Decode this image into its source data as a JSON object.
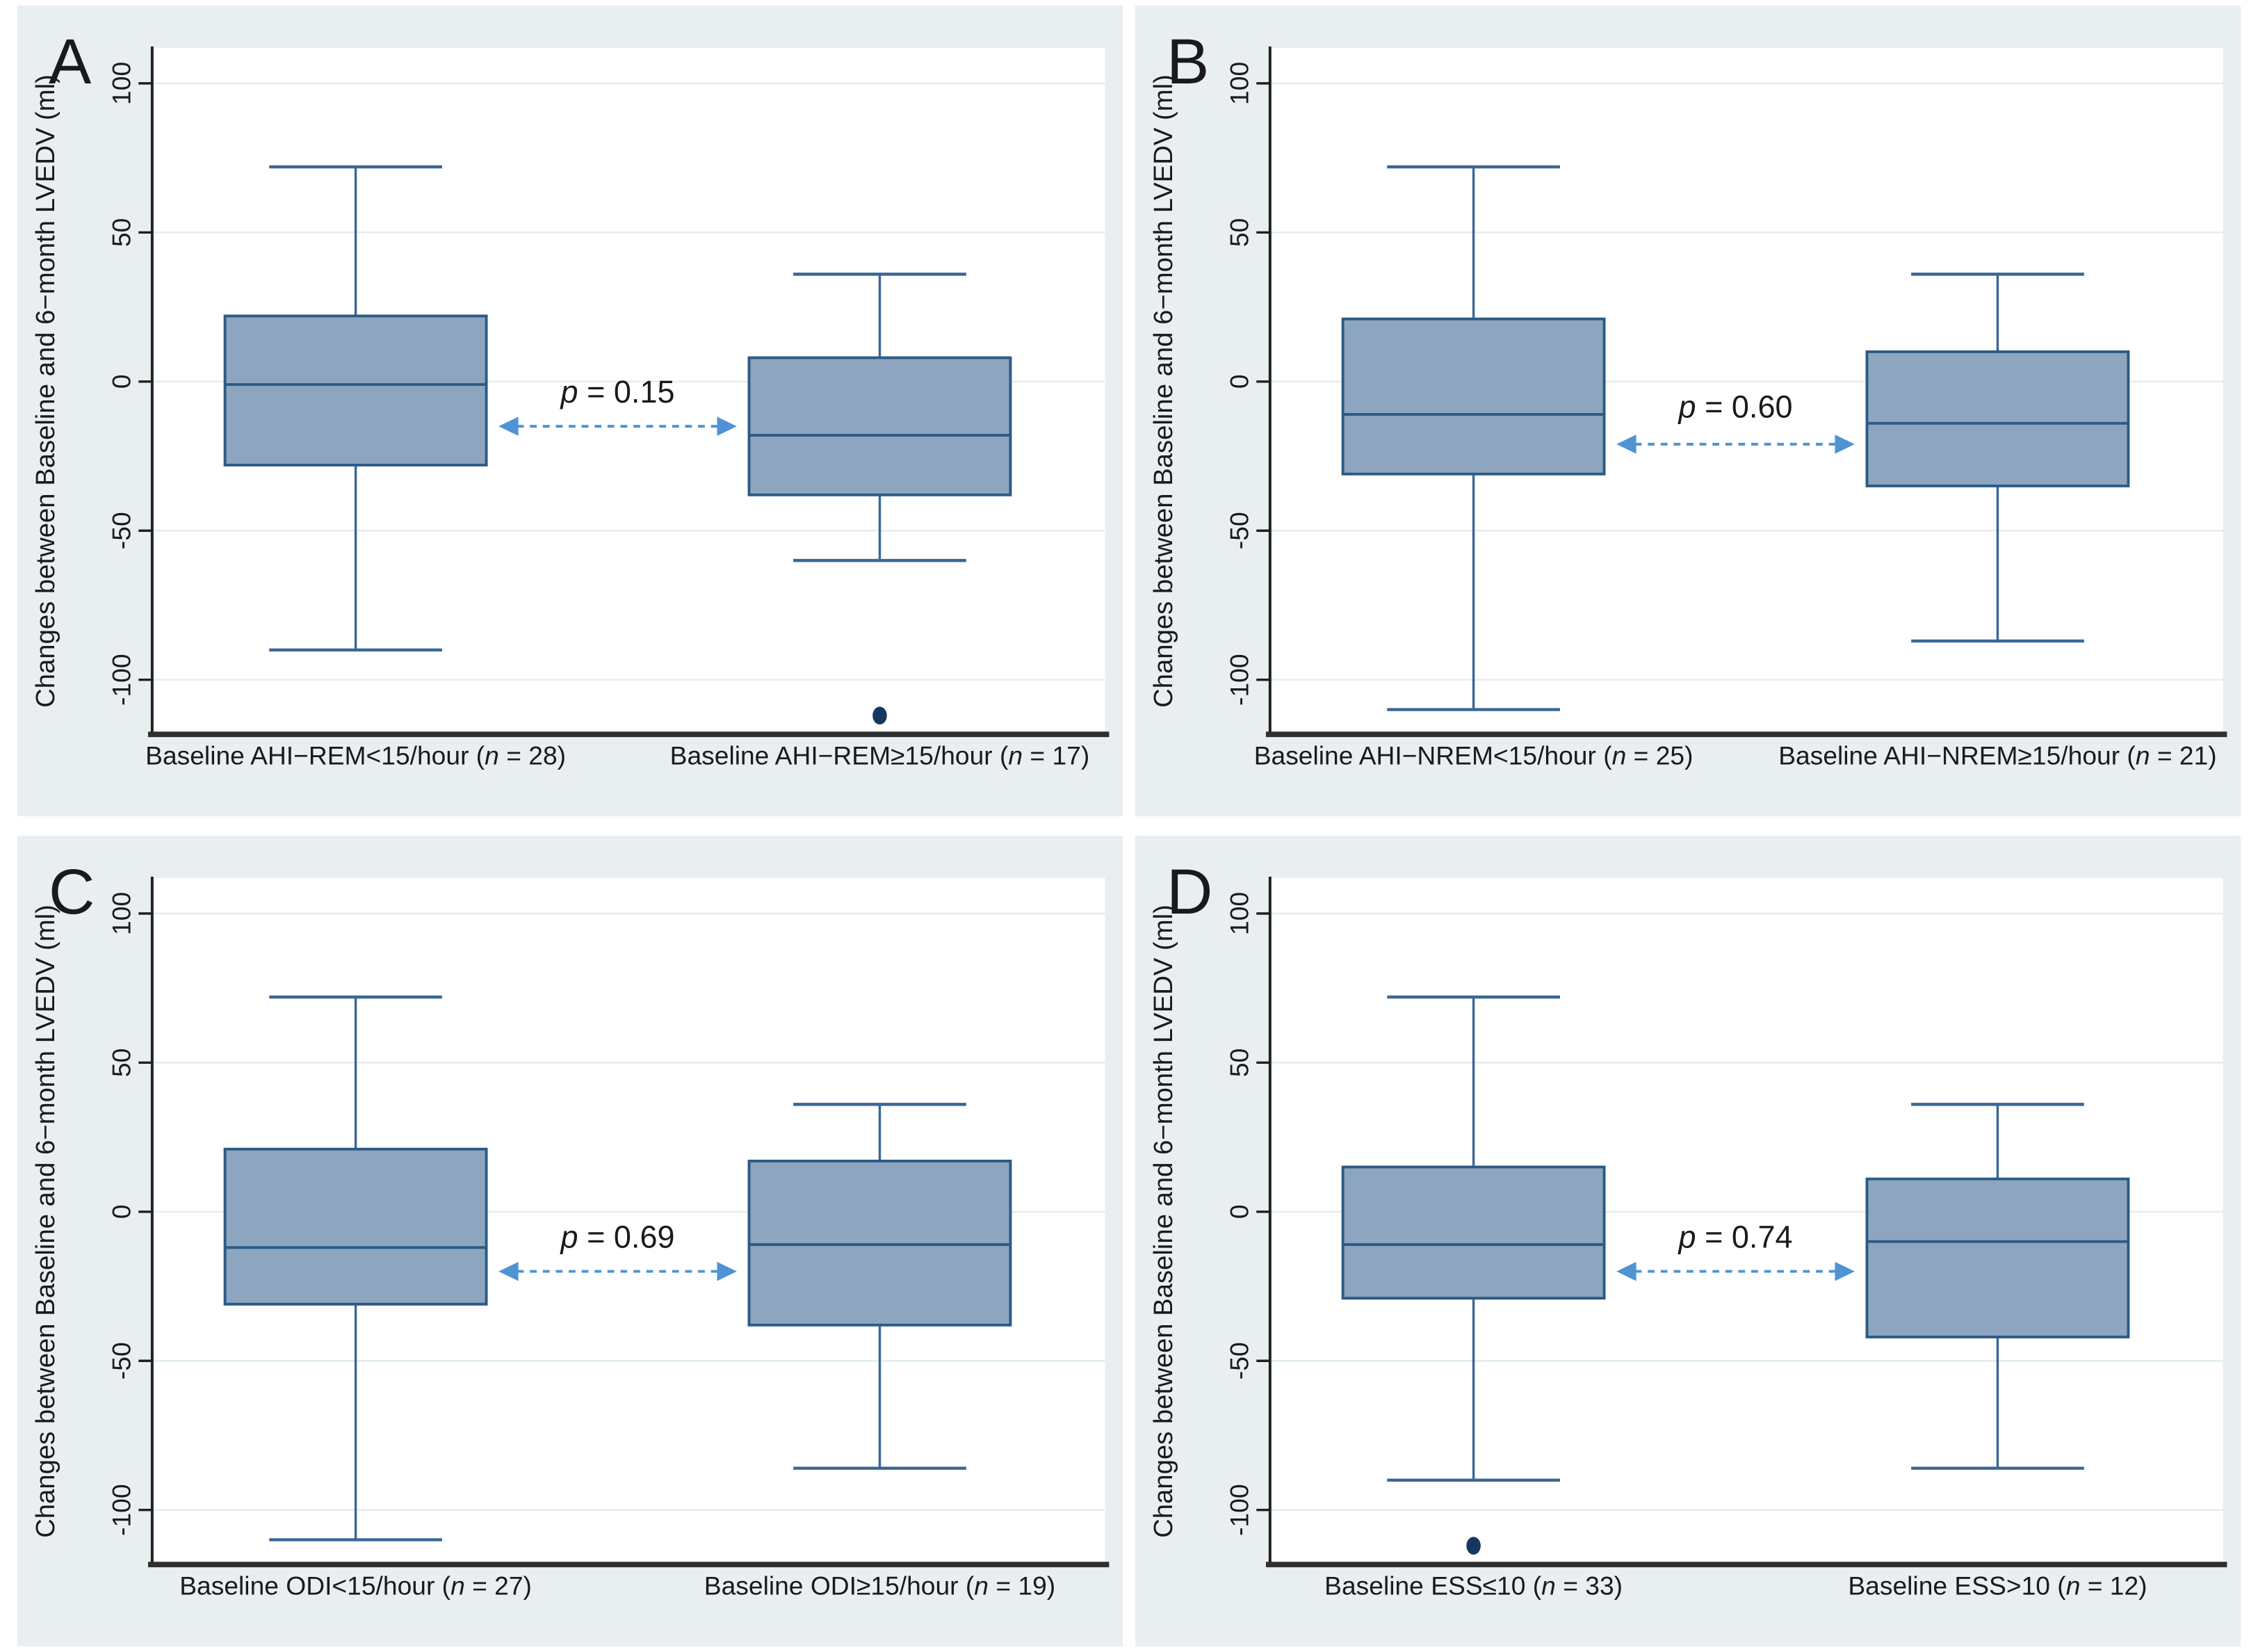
{
  "colors": {
    "panel_bg": "#e9eef1",
    "plot_bg": "#ffffff",
    "grid_line": "#e2ecf3",
    "box_fill": "#8da5bf",
    "box_stroke": "#2d5a85",
    "whisker_stroke": "#3a6795",
    "axis_line": "#1f1f1f",
    "bottom_axis_line": "#2f2f2f",
    "arrow": "#4f93d4",
    "outlier": "#17375e",
    "text": "#1a1a1a"
  },
  "chart_data": {
    "type": "boxplot",
    "layout": "2x2-grid",
    "y_axis": {
      "title": "Changes between Baseline and 6−month LVEDV (ml)",
      "ticks": [
        100,
        50,
        0,
        -50,
        -100
      ],
      "range": [
        -125,
        112
      ],
      "grid": true
    },
    "panels": [
      {
        "letter": "A",
        "p_value": "0.15",
        "p_prefix": "p",
        "comparison_arrow": {
          "value_y": -15,
          "label_value_y": -7
        },
        "groups": [
          {
            "label": "Baseline AHI−REM<15/hour",
            "n": "28",
            "stats": {
              "whisker_low": -90,
              "q1": -28,
              "median": -1,
              "q3": 22,
              "whisker_high": 72
            },
            "outliers": []
          },
          {
            "label": "Baseline AHI−REM≥15/hour",
            "n": "17",
            "stats": {
              "whisker_low": -60,
              "q1": -38,
              "median": -18,
              "q3": 8,
              "whisker_high": 36
            },
            "outliers": [
              -112
            ]
          }
        ]
      },
      {
        "letter": "B",
        "p_value": "0.60",
        "p_prefix": "p",
        "comparison_arrow": {
          "value_y": -21,
          "label_value_y": -12
        },
        "groups": [
          {
            "label": "Baseline AHI−NREM<15/hour",
            "n": "25",
            "stats": {
              "whisker_low": -110,
              "q1": -31,
              "median": -11,
              "q3": 21,
              "whisker_high": 72
            },
            "outliers": []
          },
          {
            "label": "Baseline AHI−NREM≥15/hour",
            "n": "21",
            "stats": {
              "whisker_low": -87,
              "q1": -35,
              "median": -14,
              "q3": 10,
              "whisker_high": 36
            },
            "outliers": []
          }
        ]
      },
      {
        "letter": "C",
        "p_value": "0.69",
        "p_prefix": "p",
        "comparison_arrow": {
          "value_y": -20,
          "label_value_y": -12
        },
        "groups": [
          {
            "label": "Baseline ODI<15/hour",
            "n": "27",
            "stats": {
              "whisker_low": -110,
              "q1": -31,
              "median": -12,
              "q3": 21,
              "whisker_high": 72
            },
            "outliers": []
          },
          {
            "label": "Baseline ODI≥15/hour",
            "n": "19",
            "stats": {
              "whisker_low": -86,
              "q1": -38,
              "median": -11,
              "q3": 17,
              "whisker_high": 36
            },
            "outliers": []
          }
        ]
      },
      {
        "letter": "D",
        "p_value": "0.74",
        "p_prefix": "p",
        "comparison_arrow": {
          "value_y": -20,
          "label_value_y": -12
        },
        "groups": [
          {
            "label": "Baseline ESS≤10",
            "n": "33",
            "stats": {
              "whisker_low": -90,
              "q1": -29,
              "median": -11,
              "q3": 15,
              "whisker_high": 72
            },
            "outliers": [
              -112
            ]
          },
          {
            "label": "Baseline ESS>10",
            "n": "12",
            "stats": {
              "whisker_low": -86,
              "q1": -42,
              "median": -10,
              "q3": 11,
              "whisker_high": 36
            },
            "outliers": []
          }
        ]
      }
    ]
  }
}
